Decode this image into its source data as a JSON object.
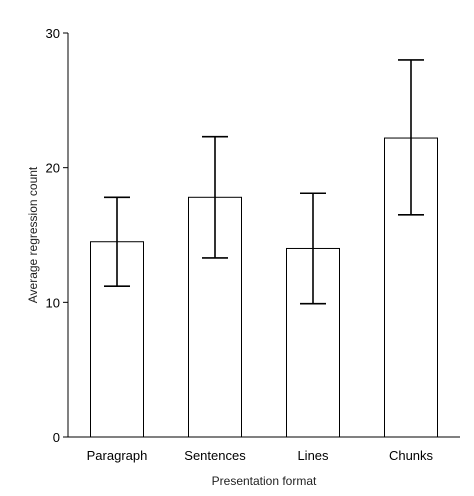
{
  "chart_data": {
    "type": "bar",
    "title": "",
    "xlabel": "Presentation format",
    "ylabel": "Average regression count",
    "categories": [
      "Paragraph",
      "Sentences",
      "Lines",
      "Chunks"
    ],
    "series": [
      {
        "values": [
          14.5,
          17.8,
          14.0,
          22.2
        ],
        "error_low": [
          11.2,
          13.3,
          9.9,
          16.5
        ],
        "error_high": [
          17.8,
          22.3,
          18.1,
          28.0
        ]
      }
    ],
    "ylim": [
      0,
      30
    ],
    "yticks": [
      "0",
      "10",
      "20",
      "30"
    ],
    "grid": false,
    "legend": "none"
  }
}
